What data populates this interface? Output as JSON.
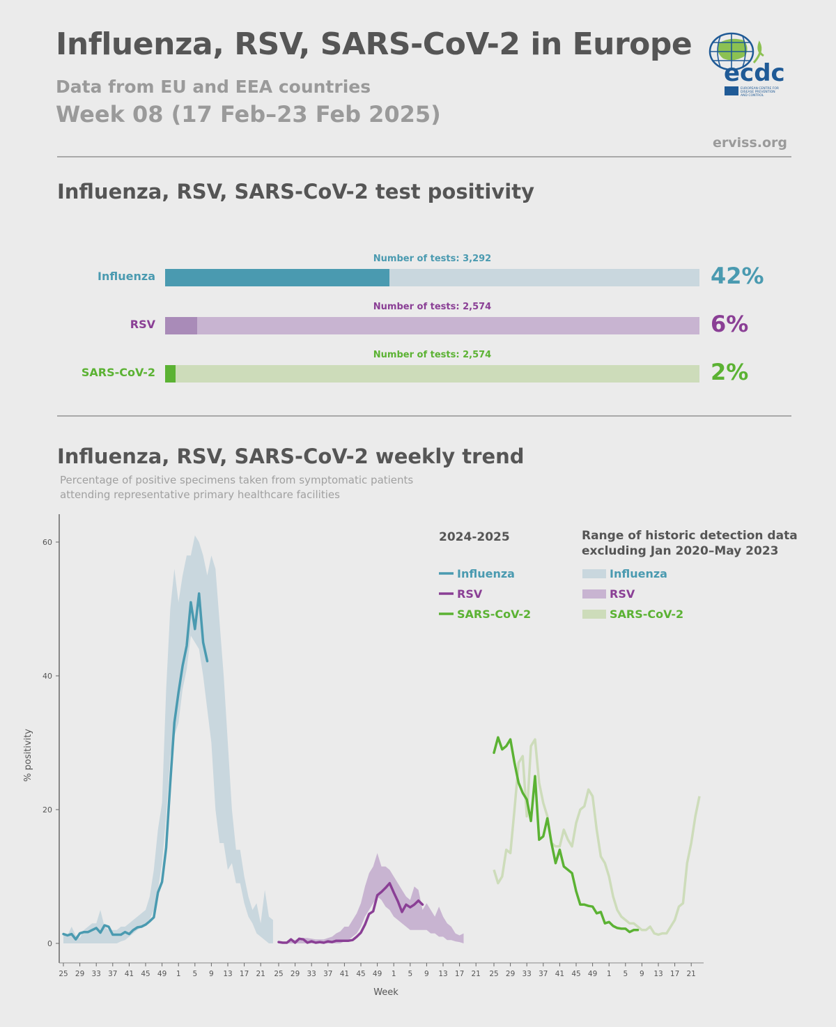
{
  "header": {
    "title": "Influenza, RSV, SARS-CoV-2 in Europe",
    "subtitle": "Data from EU and EEA countries",
    "week": "Week 08 (17 Feb–23 Feb 2025)",
    "site": "erviss.org",
    "logo_text": "ecdc",
    "logo_subtext": "EUROPEAN CENTRE FOR DISEASE PREVENTION AND CONTROL"
  },
  "colors": {
    "influenza": "#4a9ab0",
    "influenza_light": "#c9d7de",
    "rsv": "#8a3f95",
    "rsv_light": "#c8b4d1",
    "rsv_fill": "#a98bb8",
    "sars": "#5bb233",
    "sars_light": "#cddcba",
    "logo_green": "#8cc152",
    "logo_blue": "#1f5a96"
  },
  "positivity": {
    "title": "Influenza, RSV, SARS-CoV-2 test positivity",
    "items": [
      {
        "key": "influenza",
        "label": "Influenza",
        "tests_label": "Number of tests: 3,292",
        "value": 42,
        "value_label": "42%"
      },
      {
        "key": "rsv",
        "label": "RSV",
        "tests_label": "Number of tests: 2,574",
        "value": 6,
        "value_label": "6%"
      },
      {
        "key": "sars",
        "label": "SARS-CoV-2",
        "tests_label": "Number of tests: 2,574",
        "value": 2,
        "value_label": "2%"
      }
    ]
  },
  "trend": {
    "title": "Influenza, RSV, SARS-CoV-2 weekly trend",
    "note_line1": "Percentage of positive specimens taken from symptomatic patients",
    "note_line2": "attending representative primary healthcare facilities",
    "legend": {
      "season_title": "2024-2025",
      "historic_title_line1": "Range of historic detection data",
      "historic_title_line2": "excluding Jan 2020–May 2023",
      "items": [
        "Influenza",
        "RSV",
        "SARS-CoV-2"
      ]
    }
  },
  "chart_data": {
    "type": "line",
    "ylabel": "% positivity",
    "xlabel": "Week",
    "ylim": [
      -3,
      64
    ],
    "yticks": [
      0,
      20,
      40,
      60
    ],
    "x_tick_labels": [
      "25",
      "29",
      "33",
      "37",
      "41",
      "45",
      "49",
      "1",
      "5",
      "9",
      "13",
      "17",
      "21"
    ],
    "panels": [
      {
        "key": "influenza",
        "season": {
          "name": "Influenza",
          "start_week": 25,
          "values": [
            1.4,
            1.2,
            1.4,
            0.6,
            1.5,
            1.7,
            1.7,
            2.0,
            2.3,
            1.6,
            2.7,
            2.5,
            1.3,
            1.3,
            1.3,
            1.7,
            1.4,
            2.0,
            2.4,
            2.5,
            2.8,
            3.3,
            3.9,
            7.6,
            9.2,
            14.3,
            24,
            33,
            37.5,
            41.5,
            44.5,
            51,
            47,
            52.3,
            45,
            42.2
          ]
        },
        "range": {
          "name": "Influenza",
          "start_week": 25,
          "low": [
            0,
            0,
            0,
            0,
            0,
            0,
            0,
            0,
            0,
            0,
            0,
            0,
            0,
            0,
            0.3,
            0.5,
            1.0,
            1.5,
            2.0,
            2.5,
            2.8,
            3.5,
            5,
            8,
            12,
            19,
            28,
            31,
            33,
            38,
            41,
            46,
            45,
            44,
            40,
            35,
            30,
            20,
            15,
            15,
            11,
            12,
            9,
            9,
            6,
            4,
            3,
            1.5,
            1.0,
            0.5,
            0,
            0
          ],
          "high": [
            1.5,
            1.2,
            2.5,
            1.2,
            0.8,
            2.0,
            2.5,
            3.0,
            3.0,
            5.0,
            2.5,
            2.0,
            2.0,
            2.0,
            2.5,
            2.5,
            3.0,
            3.5,
            4.0,
            4.5,
            5.0,
            7.0,
            11,
            17,
            21,
            38,
            50,
            56,
            51,
            55,
            58,
            58,
            61,
            60,
            58,
            55,
            58,
            56,
            48,
            40,
            30,
            20,
            14,
            14,
            10,
            7,
            5,
            6,
            3,
            8,
            4,
            3.5
          ]
        }
      },
      {
        "key": "rsv",
        "season": {
          "name": "RSV",
          "start_week": 25,
          "values": [
            0.2,
            0.1,
            0.1,
            0.6,
            0.1,
            0.7,
            0.6,
            0.1,
            0.3,
            0.1,
            0.2,
            0.1,
            0.3,
            0.2,
            0.4,
            0.4,
            0.4,
            0.4,
            0.5,
            1.0,
            1.6,
            2.8,
            4.4,
            4.8,
            7.2,
            7.7,
            8.3,
            9.0,
            7.6,
            6.3,
            4.7,
            5.8,
            5.4,
            5.8,
            6.4,
            5.8
          ]
        },
        "range": {
          "name": "RSV",
          "start_week": 25,
          "low": [
            0,
            0,
            0,
            0,
            0,
            0,
            0,
            0,
            0,
            0,
            0,
            0,
            0,
            0,
            0,
            0,
            0.3,
            0.5,
            1.0,
            1.5,
            2.5,
            4.0,
            5.0,
            6.0,
            7.0,
            6.5,
            5.5,
            5.0,
            4.0,
            3.5,
            3.0,
            2.5,
            2.0,
            2.0,
            2.0,
            2.0,
            2.0,
            1.5,
            1.5,
            1.0,
            1.0,
            0.5,
            0.5,
            0.3,
            0.2,
            0
          ],
          "high": [
            0,
            0,
            0.3,
            0.5,
            0.5,
            0.8,
            0.8,
            0.8,
            0.7,
            0.6,
            0.6,
            0.6,
            0.8,
            1.0,
            1.5,
            1.8,
            2.5,
            2.5,
            3.5,
            4.5,
            6.0,
            8.5,
            10.5,
            11.5,
            13.5,
            11.5,
            11.5,
            11,
            10,
            9,
            8,
            7,
            6.5,
            8.5,
            8.0,
            5.0,
            6.0,
            5.0,
            4.0,
            5.5,
            4.0,
            3.0,
            2.5,
            1.5,
            1.2,
            1.5
          ]
        }
      },
      {
        "key": "sars",
        "season": {
          "name": "SARS-CoV-2",
          "start_week": 25,
          "values": [
            28.5,
            30.8,
            29,
            29.5,
            30.5,
            27,
            24,
            22.5,
            21.5,
            18.3,
            25,
            15.5,
            16,
            18.7,
            15,
            12,
            14,
            11.5,
            11,
            10.5,
            7.8,
            5.8,
            5.8,
            5.6,
            5.5,
            4.5,
            4.7,
            3.0,
            3.2,
            2.6,
            2.3,
            2.2,
            2.2,
            1.7,
            2.0,
            2.0
          ]
        },
        "range": {
          "name": "SARS-CoV-2",
          "start_week": 25,
          "values": [
            11,
            9,
            10,
            14,
            13.5,
            20,
            27,
            28,
            19,
            29.5,
            30.5,
            24,
            21,
            19,
            15,
            14.5,
            14.5,
            17,
            15.5,
            14.5,
            18,
            20,
            20.5,
            23,
            22,
            17,
            13,
            12,
            10,
            7,
            5,
            4,
            3.5,
            3,
            3,
            2.5,
            2,
            2,
            2.5,
            1.5,
            1.3,
            1.5,
            1.5,
            2.5,
            3.5,
            5.5,
            6,
            12,
            15,
            19,
            22
          ]
        }
      }
    ]
  }
}
